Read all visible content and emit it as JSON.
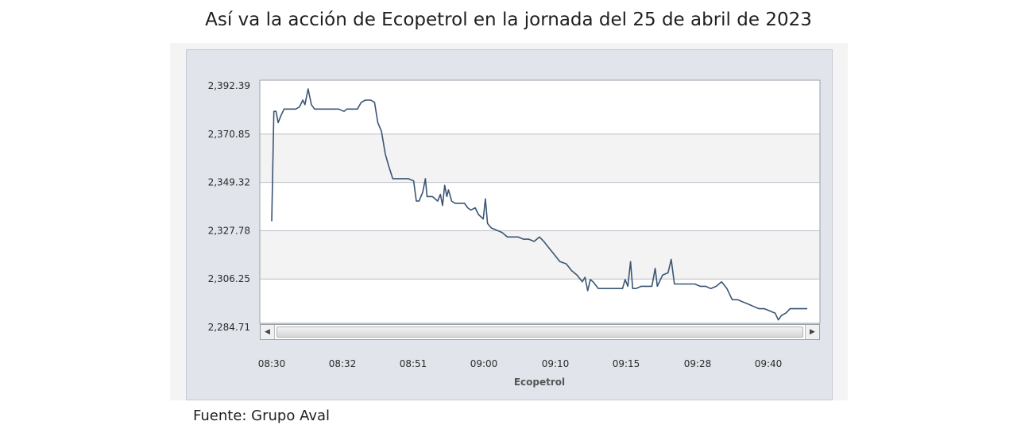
{
  "chart_data": {
    "type": "line",
    "title": "Así va la acción de Ecopetrol en la jornada del 25 de abril de 2023",
    "xlabel": "Ecopetrol",
    "ylabel": "",
    "series_name": "Ecopetrol",
    "ylim": [
      2284.71,
      2392.39
    ],
    "yticks": [
      "2,392.39",
      "2,370.85",
      "2,349.32",
      "2,327.78",
      "2,306.25",
      "2,284.71"
    ],
    "xticks": [
      "08:30",
      "08:32",
      "08:51",
      "09:00",
      "09:10",
      "09:15",
      "09:28",
      "09:40"
    ],
    "xlim": [
      0,
      100
    ],
    "points": [
      [
        0.0,
        2332
      ],
      [
        0.4,
        2381
      ],
      [
        0.8,
        2381
      ],
      [
        1.2,
        2376
      ],
      [
        1.7,
        2379
      ],
      [
        2.3,
        2382
      ],
      [
        3.5,
        2382
      ],
      [
        4.5,
        2382
      ],
      [
        5.2,
        2383
      ],
      [
        5.8,
        2386
      ],
      [
        6.2,
        2384
      ],
      [
        6.8,
        2391
      ],
      [
        7.4,
        2384
      ],
      [
        8.0,
        2382
      ],
      [
        9.5,
        2382
      ],
      [
        11.0,
        2382
      ],
      [
        12.5,
        2382
      ],
      [
        13.5,
        2381
      ],
      [
        14.0,
        2382
      ],
      [
        15.0,
        2382
      ],
      [
        16.0,
        2382
      ],
      [
        16.7,
        2385
      ],
      [
        17.5,
        2386
      ],
      [
        18.5,
        2386
      ],
      [
        19.2,
        2385
      ],
      [
        19.8,
        2376
      ],
      [
        20.5,
        2372
      ],
      [
        21.2,
        2362
      ],
      [
        21.8,
        2357
      ],
      [
        22.6,
        2351
      ],
      [
        24.0,
        2351
      ],
      [
        25.5,
        2351
      ],
      [
        26.5,
        2350
      ],
      [
        27.0,
        2341
      ],
      [
        27.5,
        2341
      ],
      [
        28.2,
        2345
      ],
      [
        28.7,
        2351
      ],
      [
        29.0,
        2343
      ],
      [
        30.0,
        2343
      ],
      [
        31.0,
        2341
      ],
      [
        31.5,
        2344
      ],
      [
        31.9,
        2339
      ],
      [
        32.3,
        2348
      ],
      [
        32.7,
        2343
      ],
      [
        33.0,
        2346
      ],
      [
        33.6,
        2341
      ],
      [
        34.2,
        2340
      ],
      [
        35.2,
        2340
      ],
      [
        36.0,
        2340
      ],
      [
        36.6,
        2338
      ],
      [
        37.2,
        2337
      ],
      [
        38.0,
        2338
      ],
      [
        38.6,
        2335
      ],
      [
        39.5,
        2333
      ],
      [
        39.9,
        2342
      ],
      [
        40.3,
        2331
      ],
      [
        41.0,
        2329
      ],
      [
        42.0,
        2328
      ],
      [
        43.0,
        2327
      ],
      [
        44.0,
        2325
      ],
      [
        45.0,
        2325
      ],
      [
        46.0,
        2325
      ],
      [
        47.0,
        2324
      ],
      [
        48.0,
        2324
      ],
      [
        49.0,
        2323
      ],
      [
        50.0,
        2325
      ],
      [
        50.8,
        2323
      ],
      [
        51.8,
        2320
      ],
      [
        52.8,
        2317
      ],
      [
        53.8,
        2314
      ],
      [
        55.0,
        2313
      ],
      [
        56.0,
        2310
      ],
      [
        57.0,
        2308
      ],
      [
        58.0,
        2305
      ],
      [
        58.5,
        2307
      ],
      [
        59.0,
        2301
      ],
      [
        59.5,
        2306
      ],
      [
        60.0,
        2305
      ],
      [
        61.0,
        2302
      ],
      [
        62.0,
        2302
      ],
      [
        63.0,
        2302
      ],
      [
        64.0,
        2302
      ],
      [
        65.5,
        2302
      ],
      [
        66.0,
        2306
      ],
      [
        66.5,
        2303
      ],
      [
        67.0,
        2314
      ],
      [
        67.4,
        2302
      ],
      [
        68.0,
        2302
      ],
      [
        69.0,
        2303
      ],
      [
        70.0,
        2303
      ],
      [
        71.0,
        2303
      ],
      [
        71.6,
        2311
      ],
      [
        72.0,
        2303
      ],
      [
        73.0,
        2308
      ],
      [
        74.0,
        2309
      ],
      [
        74.6,
        2315
      ],
      [
        75.2,
        2304
      ],
      [
        76.0,
        2304
      ],
      [
        77.0,
        2304
      ],
      [
        78.0,
        2304
      ],
      [
        79.0,
        2304
      ],
      [
        80.0,
        2303
      ],
      [
        81.0,
        2303
      ],
      [
        82.0,
        2302
      ],
      [
        83.0,
        2303
      ],
      [
        84.0,
        2305
      ],
      [
        85.0,
        2302
      ],
      [
        86.0,
        2297
      ],
      [
        87.0,
        2297
      ],
      [
        88.0,
        2296
      ],
      [
        89.0,
        2295
      ],
      [
        90.0,
        2294
      ],
      [
        91.0,
        2293
      ],
      [
        92.0,
        2293
      ],
      [
        93.0,
        2292
      ],
      [
        94.0,
        2291
      ],
      [
        94.6,
        2288
      ],
      [
        95.2,
        2290
      ],
      [
        96.0,
        2291
      ],
      [
        96.8,
        2293
      ],
      [
        98.0,
        2293
      ],
      [
        100.0,
        2293
      ]
    ]
  },
  "source": "Fuente: Grupo Aval"
}
